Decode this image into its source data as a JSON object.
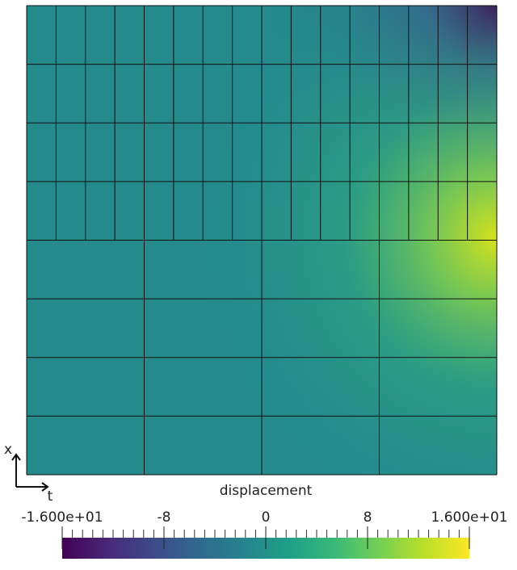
{
  "axes": {
    "vertical": "x",
    "horizontal": "t"
  },
  "colorbar": {
    "title": "displacement",
    "range": [
      -16,
      16
    ],
    "ticks": [
      {
        "value": -16,
        "label": "-1.600e+01"
      },
      -8,
      0,
      8,
      {
        "value": 16,
        "label": "1.600e+01"
      }
    ]
  }
}
